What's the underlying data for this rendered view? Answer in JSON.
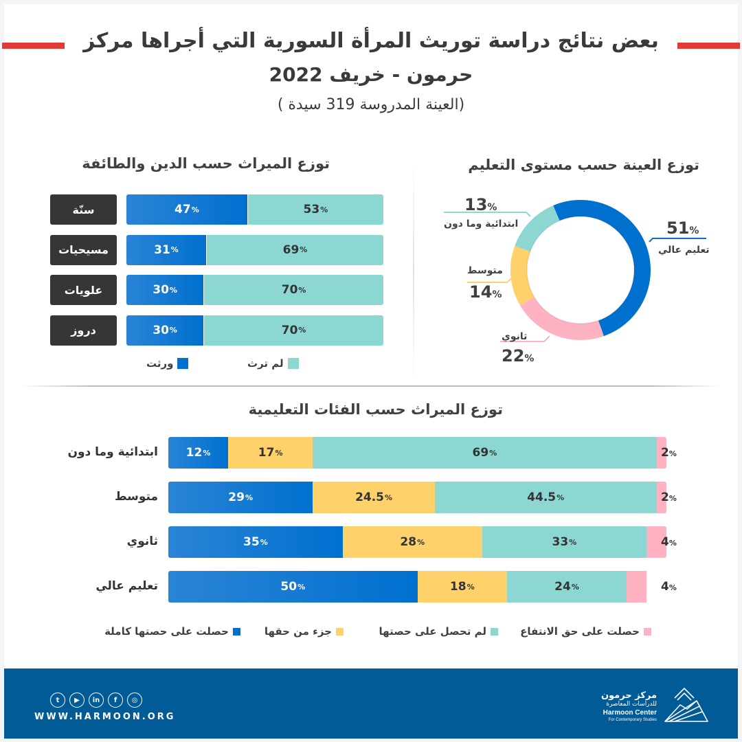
{
  "header": {
    "title_line1": "بعض نتائج دراسة توريث المرأة السورية التي أجراها مركز",
    "title_line2": "حرمون - خريف  2022",
    "subtitle": "(العينة المدروسة 319 سيدة )"
  },
  "colors": {
    "accent_red": "#e43a36",
    "blue": "#0070cf",
    "teal": "#8cd7d2",
    "yellow": "#ffd16a",
    "pink": "#ffb2c1",
    "dark_label": "#363636",
    "footer_blue": "#005b96"
  },
  "percent_sign": "%",
  "chart_data": [
    {
      "type": "bar",
      "stacked": true,
      "orientation": "horizontal",
      "title": "توزع الميراث حسب الدين والطائفة",
      "categories": [
        "سنّة",
        "مسيحيات",
        "علويات",
        "دروز"
      ],
      "series": [
        {
          "name": "ورثت",
          "color": "#0070cf",
          "values": [
            47,
            31,
            30,
            30
          ],
          "labels": [
            "47",
            "31",
            "30",
            "30"
          ]
        },
        {
          "name": "لم ترث",
          "color": "#8cd7d2",
          "values": [
            53,
            69,
            70,
            70
          ],
          "labels": [
            "53",
            "69",
            "70",
            "70"
          ]
        }
      ],
      "legend": [
        {
          "name": "لم ترث",
          "color": "#8cd7d2"
        },
        {
          "name": "ورثت",
          "color": "#0070cf"
        }
      ],
      "xlim": [
        0,
        100
      ],
      "legend_position": "bottom"
    },
    {
      "type": "pie",
      "donut": true,
      "title": "توزع العينة حسب مستوى التعليم",
      "slices": [
        {
          "label": "تعليم عالي",
          "value": 51,
          "color": "#0070cf"
        },
        {
          "label": "ثانوي",
          "value": 22,
          "color": "#ffb2c1"
        },
        {
          "label": "متوسط",
          "value": 14,
          "color": "#ffd16a"
        },
        {
          "label": "ابتدائية وما دون",
          "value": 13,
          "color": "#8cd7d2"
        }
      ]
    },
    {
      "type": "bar",
      "stacked": true,
      "orientation": "horizontal",
      "title": "توزع الميراث حسب الفئات التعليمية",
      "categories": [
        "ابتدائية وما دون",
        "متوسط",
        "ثانوي",
        "تعليم عالي"
      ],
      "series": [
        {
          "name": "حصلت على حصتها كاملة",
          "color": "#0070cf",
          "values": [
            12,
            29,
            35,
            50
          ],
          "labels": [
            "12",
            "29",
            "35",
            "50"
          ]
        },
        {
          "name": "جزء من حقها",
          "color": "#ffd16a",
          "values": [
            17,
            24.5,
            28,
            18
          ],
          "labels": [
            "17",
            "24.5",
            "28",
            "18"
          ]
        },
        {
          "name": "لم تحصل على حصتها",
          "color": "#8cd7d2",
          "values": [
            69,
            44.5,
            33,
            24
          ],
          "labels": [
            "69",
            "44.5",
            "33",
            "24"
          ]
        },
        {
          "name": "حصلت على حق الانتفاع",
          "color": "#ffb2c1",
          "values": [
            2,
            2,
            4,
            4
          ],
          "labels": [
            "2",
            "2",
            "4",
            "4"
          ]
        }
      ],
      "legend": [
        {
          "name": "حصلت على حق الانتفاع",
          "color": "#ffb2c1"
        },
        {
          "name": "لم تحصل على حصتها",
          "color": "#8cd7d2"
        },
        {
          "name": "جزء من حقها",
          "color": "#ffd16a"
        },
        {
          "name": "حصلت على حصتها كاملة",
          "color": "#0070cf"
        }
      ],
      "xlim": [
        0,
        100
      ],
      "legend_position": "bottom"
    }
  ],
  "footer": {
    "website": "WWW.HARMOON.ORG",
    "social": [
      {
        "name": "twitter",
        "glyph": "t"
      },
      {
        "name": "youtube",
        "glyph": "▶"
      },
      {
        "name": "linkedin",
        "glyph": "in"
      },
      {
        "name": "facebook",
        "glyph": "f"
      },
      {
        "name": "instagram",
        "glyph": "◎"
      }
    ],
    "logo_ar_line1": "مركز حرمون",
    "logo_ar_line2": "للدراسات المعاصرة",
    "logo_en_line1": "Harmoon Center",
    "logo_en_line2": "For Contemporary Studies"
  }
}
